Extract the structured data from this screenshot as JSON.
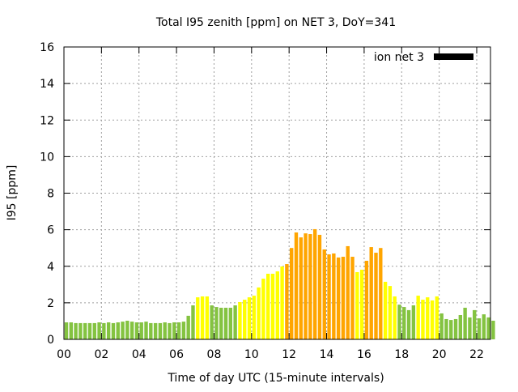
{
  "chart_data": {
    "type": "bar",
    "title": "Total I95 zenith [ppm] on NET 3, DoY=341",
    "xlabel": "Time of day UTC (15-minute intervals)",
    "ylabel": "I95 [ppm]",
    "ylim": [
      0,
      16
    ],
    "xlim": [
      0,
      22.75
    ],
    "grid": true,
    "legend": {
      "label": "ion net 3",
      "placement": "top-right",
      "color": "#000000"
    },
    "x_ticks": [
      "00",
      "02",
      "04",
      "06",
      "08",
      "10",
      "12",
      "14",
      "16",
      "18",
      "20",
      "22"
    ],
    "y_ticks": [
      "0",
      "2",
      "4",
      "6",
      "8",
      "10",
      "12",
      "14",
      "16"
    ],
    "interval_hours": 0.25,
    "color_thresholds": [
      {
        "max": 2,
        "color": "#84c341"
      },
      {
        "max": 4,
        "color": "#ffff00"
      },
      {
        "max": 99,
        "color": "#ffa500"
      }
    ],
    "values": [
      0.93,
      0.93,
      0.89,
      0.89,
      0.89,
      0.89,
      0.89,
      0.93,
      0.89,
      0.93,
      0.89,
      0.93,
      0.97,
      1.02,
      0.97,
      0.93,
      0.93,
      0.97,
      0.89,
      0.89,
      0.89,
      0.93,
      0.89,
      0.93,
      0.93,
      0.97,
      1.29,
      1.86,
      2.3,
      2.35,
      2.35,
      1.86,
      1.77,
      1.73,
      1.73,
      1.73,
      1.86,
      2.04,
      2.17,
      2.3,
      2.39,
      2.84,
      3.32,
      3.59,
      3.59,
      3.72,
      3.99,
      4.12,
      5.0,
      5.85,
      5.58,
      5.8,
      5.76,
      6.03,
      5.72,
      4.92,
      4.65,
      4.7,
      4.48,
      4.52,
      5.1,
      4.52,
      3.68,
      3.81,
      4.3,
      5.05,
      4.74,
      5.0,
      3.15,
      2.92,
      2.35,
      1.9,
      1.77,
      1.6,
      1.86,
      2.39,
      2.17,
      2.3,
      2.13,
      2.35,
      1.42,
      1.11,
      1.06,
      1.11,
      1.33,
      1.73,
      1.2,
      1.6,
      1.15,
      1.37,
      1.2,
      1.02
    ]
  }
}
